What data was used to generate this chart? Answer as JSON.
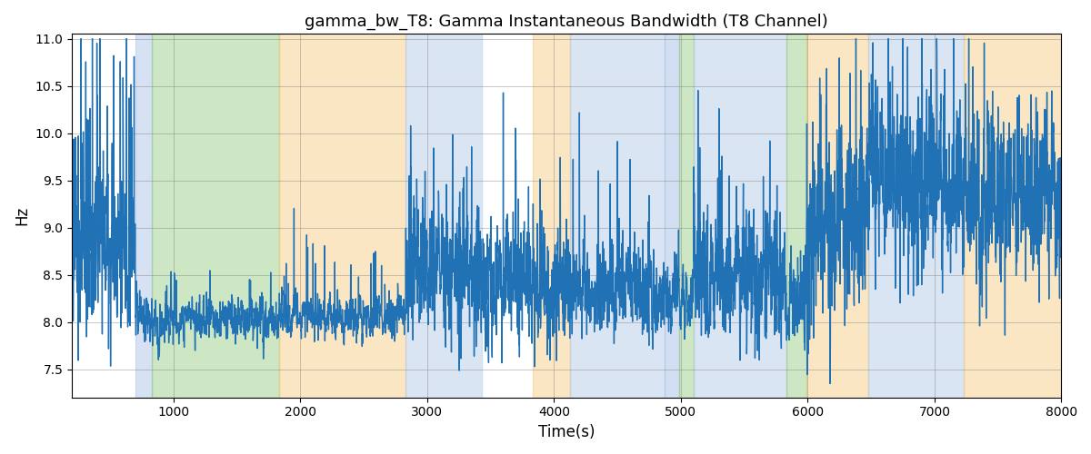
{
  "title": "gamma_bw_T8: Gamma Instantaneous Bandwidth (T8 Channel)",
  "xlabel": "Time(s)",
  "ylabel": "Hz",
  "xlim": [
    200,
    8000
  ],
  "ylim": [
    7.2,
    11.05
  ],
  "yticks": [
    7.5,
    8.0,
    8.5,
    9.0,
    9.5,
    10.0,
    10.5,
    11.0
  ],
  "xticks": [
    1000,
    2000,
    3000,
    4000,
    5000,
    6000,
    7000,
    8000
  ],
  "line_color": "#2171b5",
  "line_width": 1.0,
  "background_color": "#ffffff",
  "bands": [
    {
      "xmin": 700,
      "xmax": 830,
      "color": "#aec6e8",
      "alpha": 0.5
    },
    {
      "xmin": 830,
      "xmax": 1830,
      "color": "#90c87a",
      "alpha": 0.45
    },
    {
      "xmin": 1830,
      "xmax": 2830,
      "color": "#f5c878",
      "alpha": 0.45
    },
    {
      "xmin": 2830,
      "xmax": 3430,
      "color": "#aec6e8",
      "alpha": 0.45
    },
    {
      "xmin": 3830,
      "xmax": 4130,
      "color": "#f5c878",
      "alpha": 0.45
    },
    {
      "xmin": 4130,
      "xmax": 4870,
      "color": "#aec6e8",
      "alpha": 0.45
    },
    {
      "xmin": 4870,
      "xmax": 4990,
      "color": "#aec6e8",
      "alpha": 0.55
    },
    {
      "xmin": 4990,
      "xmax": 5100,
      "color": "#90c87a",
      "alpha": 0.45
    },
    {
      "xmin": 5100,
      "xmax": 5830,
      "color": "#aec6e8",
      "alpha": 0.45
    },
    {
      "xmin": 5830,
      "xmax": 5990,
      "color": "#90c87a",
      "alpha": 0.45
    },
    {
      "xmin": 5990,
      "xmax": 6480,
      "color": "#f5c878",
      "alpha": 0.45
    },
    {
      "xmin": 6480,
      "xmax": 7230,
      "color": "#aec6e8",
      "alpha": 0.45
    },
    {
      "xmin": 7230,
      "xmax": 8100,
      "color": "#f5c878",
      "alpha": 0.45
    }
  ],
  "seed": 123
}
